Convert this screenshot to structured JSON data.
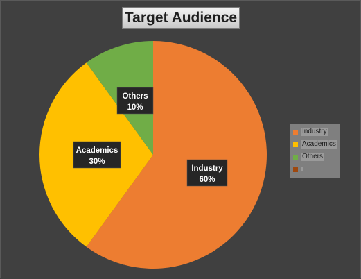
{
  "chart_data": {
    "type": "pie",
    "title": "Target Audience",
    "categories": [
      "Industry",
      "Academics",
      "Others"
    ],
    "values": [
      60,
      30,
      10
    ],
    "value_labels": [
      "60%",
      "30%",
      "10%"
    ],
    "colors": [
      "#ed7d31",
      "#ffc000",
      "#70ad47"
    ],
    "legend": {
      "position": "right",
      "items": [
        {
          "label": "Industry",
          "color": "#ed7d31"
        },
        {
          "label": "Academics",
          "color": "#ffc000"
        },
        {
          "label": "Others",
          "color": "#70ad47"
        },
        {
          "label": "",
          "color": "#9e480e"
        }
      ]
    },
    "background": "#404040"
  }
}
